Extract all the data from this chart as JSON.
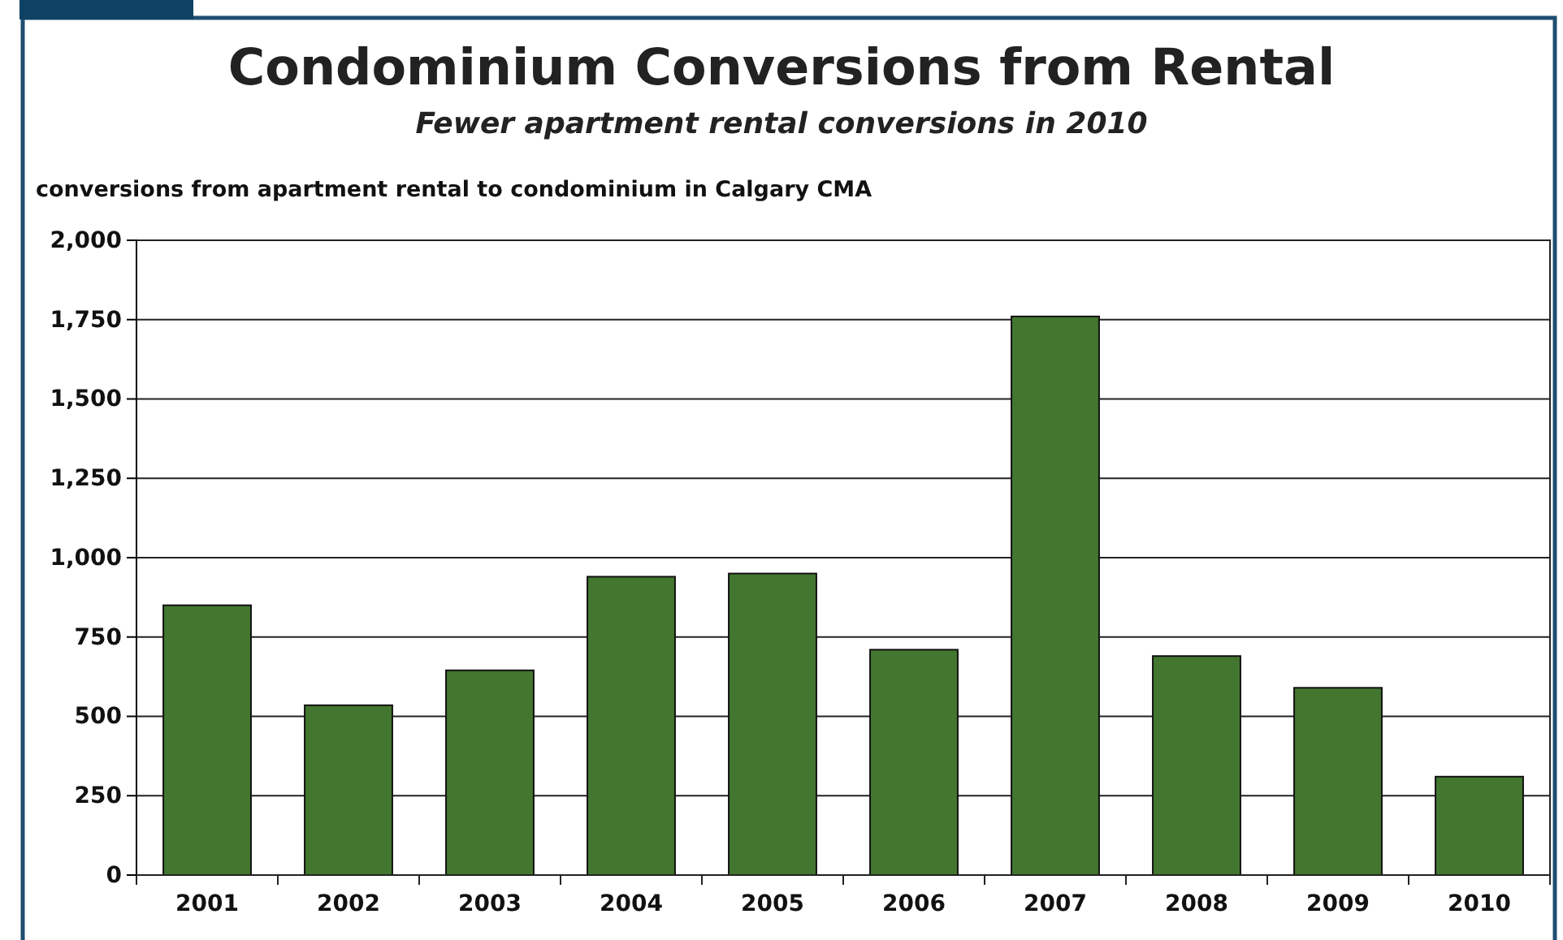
{
  "chart_data": {
    "type": "bar",
    "title": "Condominium Conversions from Rental",
    "subtitle": "Fewer apartment rental conversions in 2010",
    "ylabel": "conversions from apartment rental to condominium in Calgary CMA",
    "categories": [
      "2001",
      "2002",
      "2003",
      "2004",
      "2005",
      "2006",
      "2007",
      "2008",
      "2009",
      "2010"
    ],
    "values": [
      850,
      535,
      645,
      940,
      950,
      710,
      1760,
      690,
      590,
      310
    ],
    "color": "#437730",
    "ylim": [
      0,
      2000
    ],
    "yticks": [
      0,
      {
        "value": 250,
        "label": "250"
      },
      {
        "value": 500,
        "label": "500"
      },
      {
        "value": 750,
        "label": "750"
      },
      {
        "value": 1000,
        "label": "1,000"
      },
      {
        "value": 1250,
        "label": "1,250"
      },
      {
        "value": 1500,
        "label": "1,500"
      },
      {
        "value": 1750,
        "label": "1,750"
      },
      {
        "value": 2000,
        "label": "2,000"
      }
    ],
    "grid": "y"
  }
}
